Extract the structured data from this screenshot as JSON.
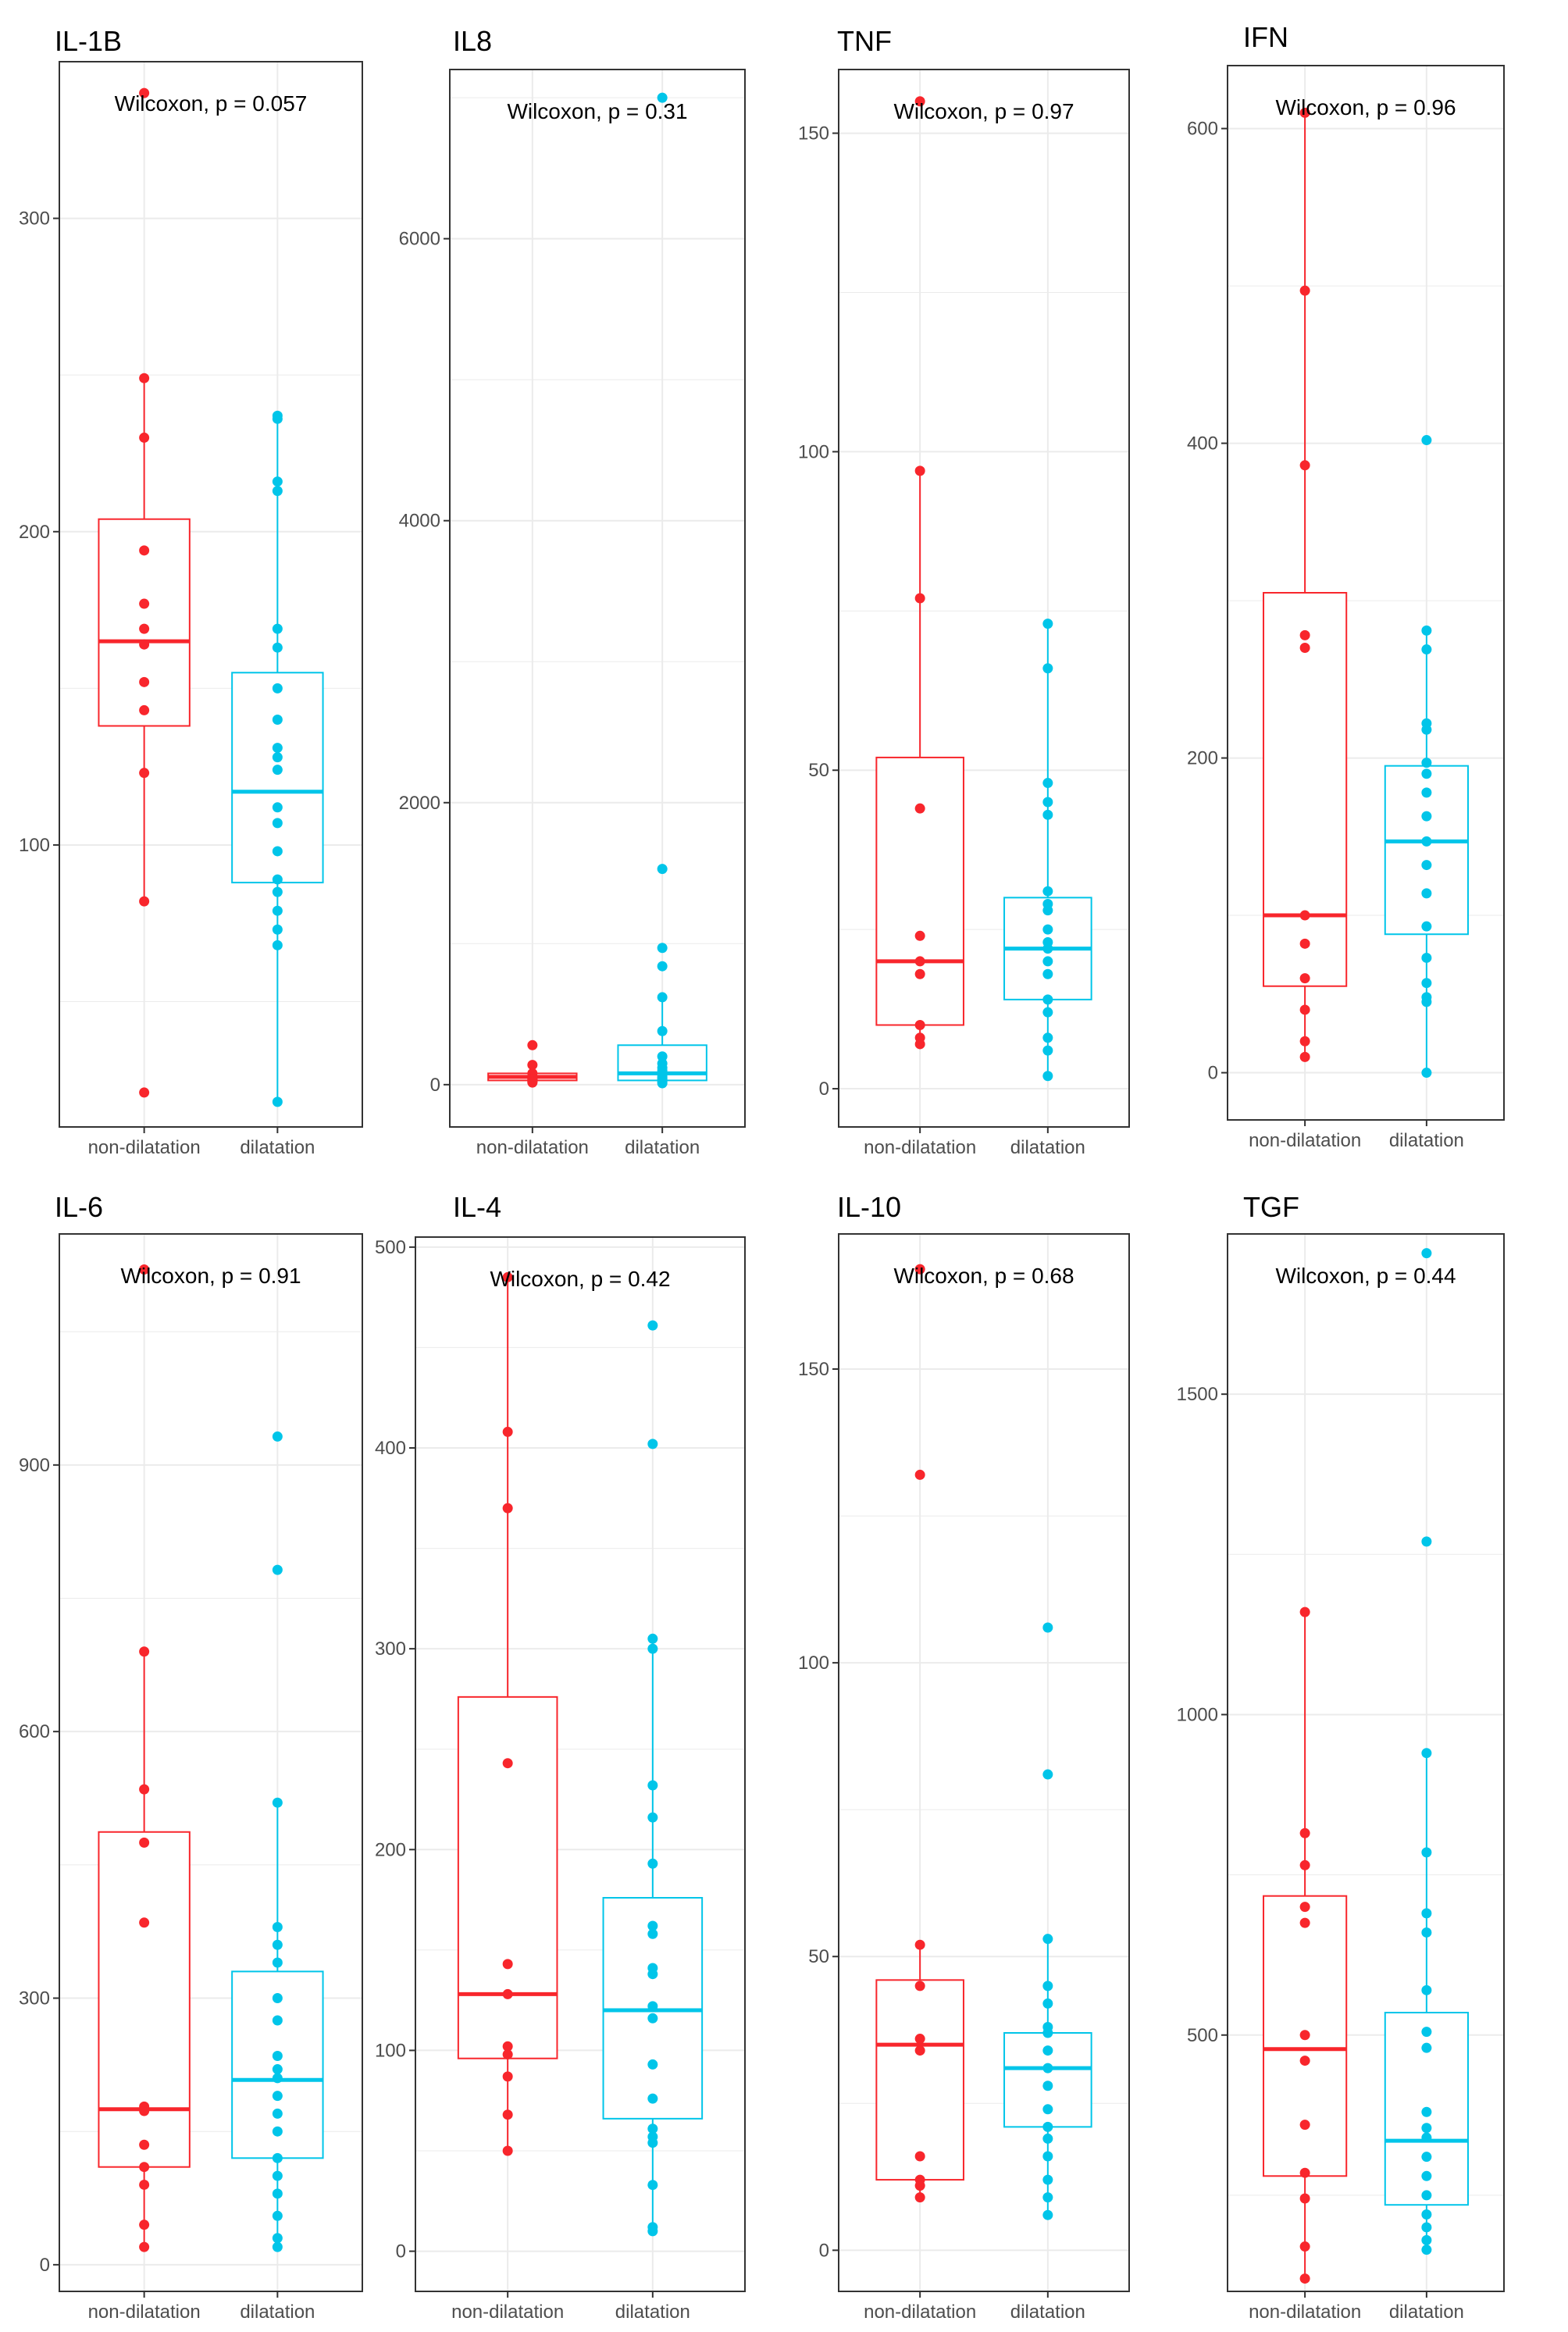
{
  "chart_data": [
    {
      "type": "box",
      "title": "IL-1B",
      "test_label": "Wilcoxon, p = 0.057",
      "categories": [
        "non-dilatation",
        "dilatation"
      ],
      "ylim": [
        10,
        350
      ],
      "yticks": [
        100,
        200,
        300
      ],
      "colors": [
        "#f8262c",
        "#00c5e9"
      ],
      "boxes": [
        {
          "q1": 138,
          "median": 165,
          "q3": 204,
          "whisker_low": 82,
          "whisker_high": 249
        },
        {
          "q1": 88,
          "median": 117,
          "q3": 155,
          "whisker_low": 18,
          "whisker_high": 237
        }
      ],
      "points": [
        [
          340,
          249,
          230,
          194,
          177,
          169,
          164,
          152,
          143,
          123,
          82,
          21
        ],
        [
          237,
          236,
          216,
          213,
          169,
          163,
          150,
          140,
          131,
          128,
          124,
          112,
          107,
          98,
          89,
          85,
          79,
          73,
          68,
          18
        ]
      ]
    },
    {
      "type": "box",
      "title": "IL8",
      "test_label": "Wilcoxon, p = 0.31",
      "categories": [
        "non-dilatation",
        "dilatation"
      ],
      "ylim": [
        -300,
        7200
      ],
      "yticks": [
        0,
        2000,
        4000,
        6000
      ],
      "colors": [
        "#f8262c",
        "#00c5e9"
      ],
      "boxes": [
        {
          "q1": 30,
          "median": 55,
          "q3": 80,
          "whisker_low": 15,
          "whisker_high": 120
        },
        {
          "q1": 30,
          "median": 80,
          "q3": 280,
          "whisker_low": 10,
          "whisker_high": 600
        }
      ],
      "points": [
        [
          280,
          140,
          80,
          60,
          50,
          45,
          40,
          35,
          30,
          25,
          20,
          15
        ],
        [
          7000,
          1530,
          970,
          840,
          620,
          380,
          200,
          150,
          120,
          100,
          80,
          60,
          50,
          40,
          30,
          20,
          10
        ]
      ]
    },
    {
      "type": "box",
      "title": "TNF",
      "test_label": "Wilcoxon, p = 0.97",
      "categories": [
        "non-dilatation",
        "dilatation"
      ],
      "ylim": [
        -6,
        160
      ],
      "yticks": [
        0,
        50,
        100,
        150
      ],
      "colors": [
        "#f8262c",
        "#00c5e9"
      ],
      "boxes": [
        {
          "q1": 10,
          "median": 20,
          "q3": 52,
          "whisker_low": 7,
          "whisker_high": 97
        },
        {
          "q1": 14,
          "median": 22,
          "q3": 30,
          "whisker_low": 2,
          "whisker_high": 73
        }
      ],
      "points": [
        [
          155,
          97,
          77,
          44,
          24,
          20,
          18,
          10,
          8,
          7
        ],
        [
          73,
          66,
          48,
          45,
          43,
          31,
          29,
          28,
          25,
          23,
          22,
          20,
          18,
          14,
          12,
          8,
          6,
          2
        ]
      ]
    },
    {
      "type": "box",
      "title": "IFN",
      "test_label": "Wilcoxon, p = 0.96",
      "categories": [
        "non-dilatation",
        "dilatation"
      ],
      "ylim": [
        -30,
        640
      ],
      "yticks": [
        0,
        200,
        400,
        600
      ],
      "colors": [
        "#f8262c",
        "#00c5e9"
      ],
      "boxes": [
        {
          "q1": 55,
          "median": 100,
          "q3": 305,
          "whisker_low": 10,
          "whisker_high": 610
        },
        {
          "q1": 88,
          "median": 147,
          "q3": 195,
          "whisker_low": 0,
          "whisker_high": 280
        }
      ],
      "points": [
        [
          610,
          497,
          386,
          278,
          270,
          100,
          82,
          60,
          40,
          20,
          10
        ],
        [
          402,
          281,
          269,
          222,
          218,
          197,
          190,
          178,
          163,
          147,
          132,
          114,
          93,
          73,
          57,
          48,
          45,
          0
        ]
      ]
    },
    {
      "type": "box",
      "title": "IL-6",
      "test_label": "Wilcoxon, p = 0.91",
      "categories": [
        "non-dilatation",
        "dilatation"
      ],
      "ylim": [
        -30,
        1160
      ],
      "yticks": [
        0,
        300,
        600,
        900
      ],
      "colors": [
        "#f8262c",
        "#00c5e9"
      ],
      "boxes": [
        {
          "q1": 110,
          "median": 175,
          "q3": 487,
          "whisker_low": 20,
          "whisker_high": 690
        },
        {
          "q1": 120,
          "median": 208,
          "q3": 330,
          "whisker_low": 20,
          "whisker_high": 520
        }
      ],
      "points": [
        [
          1120,
          690,
          535,
          475,
          385,
          178,
          173,
          135,
          110,
          90,
          45,
          20
        ],
        [
          932,
          782,
          520,
          380,
          360,
          340,
          300,
          275,
          235,
          220,
          210,
          190,
          170,
          150,
          120,
          100,
          80,
          55,
          30,
          20
        ]
      ]
    },
    {
      "type": "box",
      "title": "IL-4",
      "test_label": "Wilcoxon, p = 0.42",
      "categories": [
        "non-dilatation",
        "dilatation"
      ],
      "ylim": [
        -20,
        505
      ],
      "yticks": [
        0,
        100,
        200,
        300,
        400,
        500
      ],
      "colors": [
        "#f8262c",
        "#00c5e9"
      ],
      "boxes": [
        {
          "q1": 96,
          "median": 128,
          "q3": 276,
          "whisker_low": 50,
          "whisker_high": 485
        },
        {
          "q1": 66,
          "median": 120,
          "q3": 176,
          "whisker_low": 10,
          "whisker_high": 305
        }
      ],
      "points": [
        [
          485,
          408,
          370,
          243,
          143,
          128,
          102,
          98,
          87,
          68,
          50
        ],
        [
          461,
          402,
          305,
          300,
          232,
          216,
          193,
          162,
          158,
          141,
          138,
          122,
          116,
          93,
          76,
          61,
          57,
          54,
          33,
          12,
          10
        ]
      ]
    },
    {
      "type": "box",
      "title": "IL-10",
      "test_label": "Wilcoxon, p = 0.68",
      "categories": [
        "non-dilatation",
        "dilatation"
      ],
      "ylim": [
        -7,
        173
      ],
      "yticks": [
        0,
        50,
        100,
        150
      ],
      "colors": [
        "#f8262c",
        "#00c5e9"
      ],
      "boxes": [
        {
          "q1": 12,
          "median": 35,
          "q3": 46,
          "whisker_low": 9,
          "whisker_high": 52
        },
        {
          "q1": 21,
          "median": 31,
          "q3": 37,
          "whisker_low": 6,
          "whisker_high": 53
        }
      ],
      "points": [
        [
          167,
          132,
          52,
          45,
          36,
          34,
          16,
          12,
          11,
          9
        ],
        [
          106,
          81,
          53,
          45,
          42,
          38,
          37,
          34,
          31,
          28,
          24,
          21,
          19,
          16,
          12,
          9,
          6
        ]
      ]
    },
    {
      "type": "box",
      "title": "TGF",
      "test_label": "Wilcoxon, p = 0.44",
      "categories": [
        "non-dilatation",
        "dilatation"
      ],
      "ylim": [
        100,
        1750
      ],
      "yticks": [
        500,
        1000,
        1500
      ],
      "colors": [
        "#f8262c",
        "#00c5e9"
      ],
      "boxes": [
        {
          "q1": 280,
          "median": 478,
          "q3": 717,
          "whisker_low": 120,
          "whisker_high": 1160
        },
        {
          "q1": 235,
          "median": 335,
          "q3": 535,
          "whisker_low": 160,
          "whisker_high": 940
        }
      ],
      "points": [
        [
          1160,
          815,
          765,
          700,
          675,
          500,
          460,
          360,
          285,
          245,
          170,
          120
        ],
        [
          1720,
          1270,
          940,
          785,
          690,
          660,
          570,
          505,
          480,
          380,
          355,
          340,
          310,
          280,
          250,
          220,
          200,
          180,
          165
        ]
      ]
    }
  ]
}
